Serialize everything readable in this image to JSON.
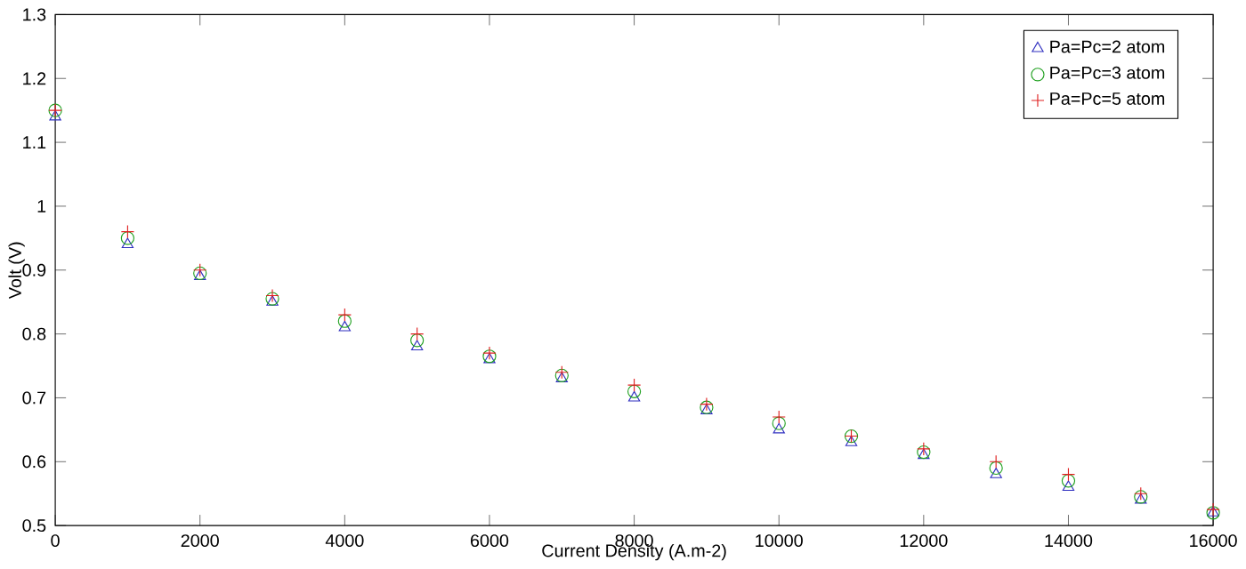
{
  "chart_data": {
    "type": "scatter",
    "xlabel": "Current Density (A.m-2)",
    "ylabel": "Volt (V)",
    "x": [
      0,
      1000,
      2000,
      3000,
      4000,
      5000,
      6000,
      7000,
      8000,
      9000,
      10000,
      11000,
      12000,
      13000,
      14000,
      15000,
      16000
    ],
    "series": [
      {
        "name": "Pa=Pc=2 atom",
        "color": "#3030c0",
        "marker": "triangle",
        "values": [
          1.14,
          0.94,
          0.89,
          0.85,
          0.81,
          0.78,
          0.76,
          0.73,
          0.7,
          0.68,
          0.65,
          0.63,
          0.61,
          0.58,
          0.56,
          0.54,
          0.52
        ]
      },
      {
        "name": "Pa=Pc=3 atom",
        "color": "#20a020",
        "marker": "circle",
        "values": [
          1.15,
          0.95,
          0.895,
          0.855,
          0.82,
          0.79,
          0.765,
          0.735,
          0.71,
          0.685,
          0.66,
          0.64,
          0.615,
          0.59,
          0.57,
          0.545,
          0.52
        ]
      },
      {
        "name": "Pa=Pc=5 atom",
        "color": "#e02020",
        "marker": "cross",
        "values": [
          1.15,
          0.96,
          0.9,
          0.86,
          0.83,
          0.8,
          0.77,
          0.74,
          0.72,
          0.69,
          0.67,
          0.64,
          0.62,
          0.6,
          0.58,
          0.55,
          0.525
        ]
      }
    ],
    "xlim": [
      0,
      16000
    ],
    "xticks": [
      0,
      2000,
      4000,
      6000,
      8000,
      10000,
      12000,
      14000,
      16000
    ],
    "ylim": [
      0.5,
      1.3
    ],
    "yticks": [
      0.5,
      0.6,
      0.7,
      0.8,
      0.9,
      1,
      1.1,
      1.2,
      1.3
    ],
    "grid": false,
    "legend": "top right"
  }
}
